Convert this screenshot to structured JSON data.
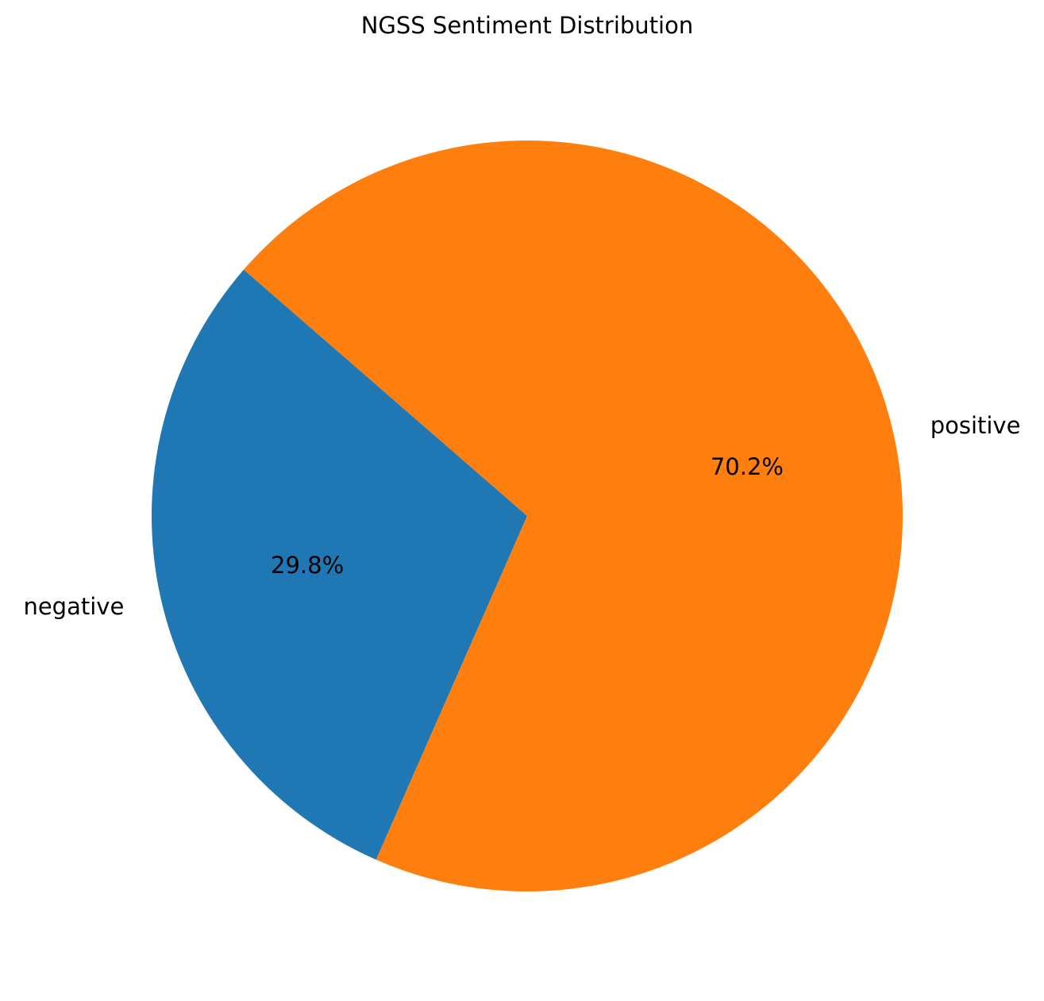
{
  "chart_data": {
    "type": "pie",
    "title": "NGSS Sentiment Distribution",
    "categories": [
      "negative",
      "positive"
    ],
    "values": [
      29.8,
      70.2
    ],
    "value_labels": [
      "29.8%",
      "70.2%"
    ],
    "colors": [
      "#1f77b4",
      "#ff7f0e"
    ],
    "start_angle_deg": 139,
    "direction": "counterclockwise"
  }
}
